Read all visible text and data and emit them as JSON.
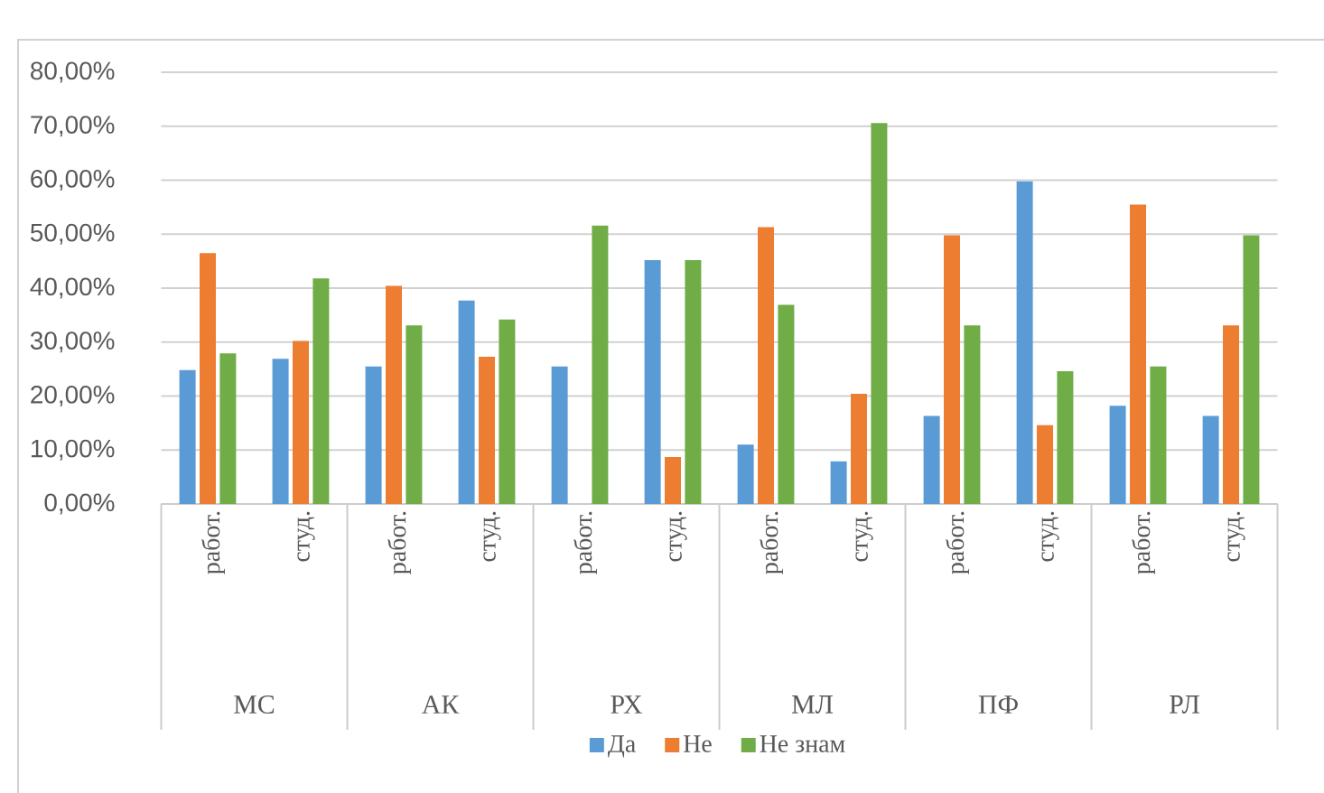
{
  "chart_data": {
    "type": "bar",
    "categories": [
      "работ.",
      "студ.",
      "работ.",
      "студ.",
      "работ.",
      "студ.",
      "работ.",
      "студ.",
      "работ.",
      "студ.",
      "работ.",
      "студ."
    ],
    "annotations": [
      "МС",
      "АК",
      "РХ",
      "МЛ",
      "ПФ",
      "РЛ"
    ],
    "series": [
      {
        "name": "Да",
        "color": "#5b9bd5",
        "values": [
          24.8,
          26.9,
          25.5,
          37.7,
          25.5,
          45.2,
          11.0,
          7.9,
          16.3,
          59.8,
          18.2,
          16.3
        ]
      },
      {
        "name": "Не",
        "color": "#ed7d31",
        "values": [
          46.5,
          30.2,
          40.4,
          27.3,
          0,
          8.7,
          51.3,
          20.4,
          49.8,
          14.6,
          55.5,
          33.1
        ]
      },
      {
        "name": "Не знам",
        "color": "#70ad47",
        "values": [
          27.9,
          41.8,
          33.1,
          34.2,
          51.6,
          45.2,
          36.9,
          70.6,
          33.1,
          24.6,
          25.5,
          49.8
        ]
      }
    ],
    "ylim": [
      0,
      80
    ],
    "yticks": [
      {
        "value": 0,
        "label": "0,00%"
      },
      {
        "value": 10,
        "label": "10,00%"
      },
      {
        "value": 20,
        "label": "20,00%"
      },
      {
        "value": 30,
        "label": "30,00%"
      },
      {
        "value": 40,
        "label": "40,00%"
      },
      {
        "value": 50,
        "label": "50,00%"
      },
      {
        "value": 60,
        "label": "60,00%"
      },
      {
        "value": 70,
        "label": "70,00%"
      },
      {
        "value": 80,
        "label": "80,00%"
      }
    ],
    "grid": "y",
    "legend": "bottom"
  }
}
